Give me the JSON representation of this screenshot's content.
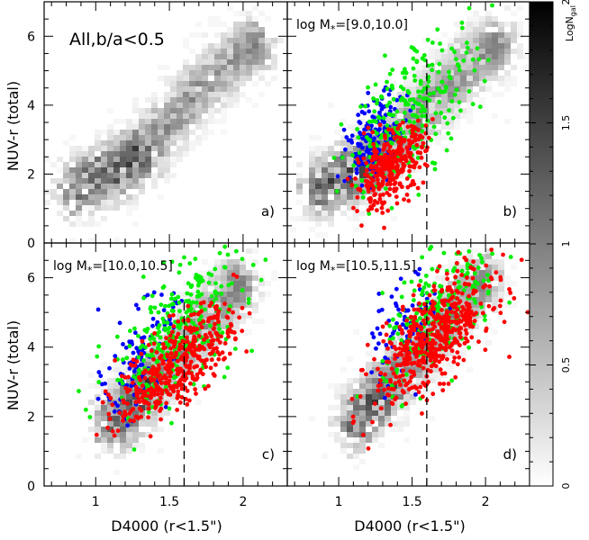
{
  "chart_data": {
    "type": "scatter",
    "xlabel": "D4000 (r<1.5\")",
    "ylabel": "NUV-r (total)",
    "xlim": [
      0.65,
      2.3
    ],
    "ylim": [
      0,
      7
    ],
    "x_ticks": [
      "1",
      "1.5",
      "2"
    ],
    "y_ticks": [
      "0",
      "2",
      "4",
      "6"
    ],
    "colorbar": {
      "label": "LogN",
      "label_sub": "gal",
      "range": [
        0,
        2
      ],
      "ticks": [
        "0",
        "0.5",
        "1",
        "1.5",
        "2"
      ],
      "colormap": "white-to-black"
    },
    "divider_x": 1.6,
    "colors": {
      "blue": "#0000ff",
      "green": "#00ee00",
      "red": "#ff0000",
      "density": "#000000"
    },
    "panels": [
      {
        "id": "a",
        "title": "All,b/a<0.5",
        "panel_label": "a)",
        "density_ridge": [
          [
            0.85,
            1.5
          ],
          [
            1.0,
            1.9
          ],
          [
            1.15,
            2.1
          ],
          [
            1.25,
            2.4
          ],
          [
            1.4,
            3.0
          ],
          [
            1.55,
            3.7
          ],
          [
            1.7,
            4.4
          ],
          [
            1.85,
            5.0
          ],
          [
            2.0,
            5.5
          ],
          [
            2.1,
            5.8
          ]
        ],
        "dots": false
      },
      {
        "id": "b",
        "title": "log M",
        "title_sub": "*",
        "title_range": "=[9.0,10.0]",
        "panel_label": "b)",
        "density_ridge": [
          [
            0.85,
            1.5
          ],
          [
            1.0,
            1.9
          ],
          [
            1.15,
            2.1
          ],
          [
            1.25,
            2.4
          ],
          [
            1.4,
            3.0
          ],
          [
            1.55,
            3.7
          ],
          [
            1.7,
            4.4
          ],
          [
            1.85,
            5.0
          ],
          [
            2.0,
            5.5
          ],
          [
            2.1,
            5.8
          ]
        ],
        "dots": true,
        "series": [
          {
            "name": "",
            "color": "blue",
            "center": [
              1.25,
              3.0
            ],
            "spread": [
              0.1,
              0.6
            ],
            "count": 170,
            "slope": 2.6
          },
          {
            "name": "",
            "color": "green",
            "center": [
              1.5,
              3.9
            ],
            "spread": [
              0.22,
              0.9
            ],
            "count": 260,
            "slope": 3.2
          },
          {
            "name": "",
            "color": "red",
            "center": [
              1.35,
              2.2
            ],
            "spread": [
              0.12,
              0.5
            ],
            "count": 320,
            "slope": 2.5
          }
        ]
      },
      {
        "id": "c",
        "title": "log M",
        "title_sub": "*",
        "title_range": "=[10.0,10.5]",
        "panel_label": "c)",
        "density_ridge": [
          [
            1.1,
            1.8
          ],
          [
            1.2,
            2.1
          ],
          [
            1.3,
            2.6
          ],
          [
            1.45,
            3.3
          ],
          [
            1.6,
            4.0
          ],
          [
            1.75,
            4.8
          ],
          [
            1.9,
            5.5
          ],
          [
            2.0,
            5.9
          ]
        ],
        "dots": true,
        "series": [
          {
            "name": "",
            "color": "blue",
            "center": [
              1.3,
              3.7
            ],
            "spread": [
              0.12,
              0.7
            ],
            "count": 120,
            "slope": 3.0
          },
          {
            "name": "",
            "color": "green",
            "center": [
              1.55,
              4.4
            ],
            "spread": [
              0.22,
              0.9
            ],
            "count": 300,
            "slope": 3.0
          },
          {
            "name": "",
            "color": "red",
            "center": [
              1.55,
              3.5
            ],
            "spread": [
              0.2,
              0.6
            ],
            "count": 420,
            "slope": 3.0
          }
        ]
      },
      {
        "id": "d",
        "title": "log M",
        "title_sub": "*",
        "title_range": "=[10.5,11.5]",
        "panel_label": "d)",
        "density_ridge": [
          [
            1.1,
            1.8
          ],
          [
            1.2,
            2.2
          ],
          [
            1.3,
            2.7
          ],
          [
            1.45,
            3.4
          ],
          [
            1.6,
            4.1
          ],
          [
            1.75,
            4.9
          ],
          [
            1.9,
            5.6
          ],
          [
            2.0,
            6.0
          ]
        ],
        "dots": true,
        "series": [
          {
            "name": "",
            "color": "blue",
            "center": [
              1.45,
              4.6
            ],
            "spread": [
              0.12,
              0.7
            ],
            "count": 80,
            "slope": 3.0
          },
          {
            "name": "",
            "color": "green",
            "center": [
              1.7,
              5.0
            ],
            "spread": [
              0.2,
              0.8
            ],
            "count": 200,
            "slope": 3.0
          },
          {
            "name": "",
            "color": "red",
            "center": [
              1.65,
              4.3
            ],
            "spread": [
              0.2,
              0.7
            ],
            "count": 520,
            "slope": 3.0
          }
        ]
      }
    ]
  }
}
